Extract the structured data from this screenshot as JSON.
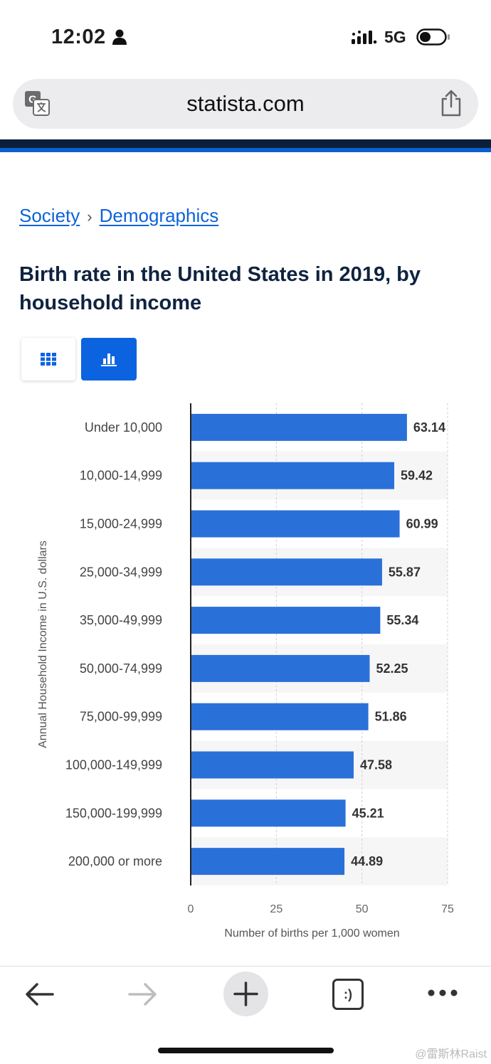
{
  "status_bar": {
    "time": "12:02",
    "network": "5G"
  },
  "browser": {
    "url": "statista.com"
  },
  "breadcrumb": {
    "items": [
      "Society",
      "Demographics"
    ],
    "separator": "›"
  },
  "page": {
    "title": "Birth rate in the United States in 2019, by household income"
  },
  "view_toggle": {
    "active": "chart",
    "options": [
      "table",
      "chart"
    ]
  },
  "colors": {
    "bar": "#2a70d9",
    "accent": "#0c63e0",
    "title": "#0f2340",
    "link": "#0c63d8"
  },
  "chart_data": {
    "type": "bar",
    "orientation": "horizontal",
    "categories": [
      "Under 10,000",
      "10,000-14,999",
      "15,000-24,999",
      "25,000-34,999",
      "35,000-49,999",
      "50,000-74,999",
      "75,000-99,999",
      "100,000-149,999",
      "150,000-199,999",
      "200,000 or more"
    ],
    "values": [
      63.14,
      59.42,
      60.99,
      55.87,
      55.34,
      52.25,
      51.86,
      47.58,
      45.21,
      44.89
    ],
    "value_labels": [
      "63.14",
      "59.42",
      "60.99",
      "55.87",
      "55.34",
      "52.25",
      "51.86",
      "47.58",
      "45.21",
      "44.89"
    ],
    "xlabel": "Number of births per 1,000 women",
    "ylabel": "Annual Household Income in U.S. dollars",
    "xlim": [
      0,
      75
    ],
    "xticks": [
      0,
      25,
      50,
      75
    ],
    "grid": true
  },
  "bottom_toolbar": {
    "items": [
      "back-icon",
      "forward-icon",
      "new-tab-icon",
      "tabs-icon",
      "more-icon"
    ],
    "tabs_glyph": ":)"
  },
  "watermark": "@雷斯林Raist"
}
